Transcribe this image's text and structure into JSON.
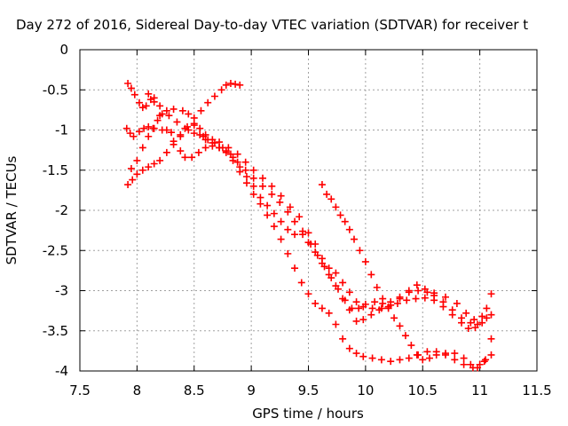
{
  "chart_data": {
    "type": "scatter",
    "title": "Day 272 of 2016, Sidereal Day-to-day VTEC variation (SDTVAR) for receiver t",
    "xlabel": "GPS time / hours",
    "ylabel": "SDTVAR / TECUs",
    "xlim": [
      7.5,
      11.5
    ],
    "ylim": [
      -4,
      0
    ],
    "xticks": [
      "7.5",
      "8",
      "8.5",
      "9",
      "9.5",
      "10",
      "10.5",
      "11",
      "11.5"
    ],
    "yticks": [
      "0",
      "-0.5",
      "-1",
      "-1.5",
      "-2",
      "-2.5",
      "-3",
      "-3.5",
      "-4"
    ],
    "grid": true,
    "marker": "+",
    "marker_color": "#ff0000",
    "series": [
      {
        "points": [
          [
            7.92,
            -0.42
          ],
          [
            7.95,
            -0.48
          ],
          [
            7.98,
            -0.56
          ],
          [
            8.02,
            -0.66
          ],
          [
            8.05,
            -0.72
          ],
          [
            8.08,
            -0.7
          ],
          [
            8.12,
            -0.62
          ],
          [
            8.15,
            -0.6
          ],
          [
            8.2,
            -0.7
          ],
          [
            8.28,
            -0.82
          ],
          [
            8.35,
            -0.9
          ],
          [
            8.42,
            -0.98
          ],
          [
            8.5,
            -1.04
          ],
          [
            8.58,
            -1.08
          ],
          [
            8.62,
            -1.12
          ],
          [
            8.68,
            -1.16
          ],
          [
            8.75,
            -1.22
          ],
          [
            8.82,
            -1.3
          ],
          [
            8.88,
            -1.4
          ],
          [
            8.95,
            -1.5
          ],
          [
            9.02,
            -1.6
          ],
          [
            9.1,
            -1.7
          ],
          [
            9.18,
            -1.8
          ],
          [
            9.25,
            -1.9
          ],
          [
            9.32,
            -2.02
          ],
          [
            9.38,
            -2.14
          ],
          [
            9.45,
            -2.26
          ],
          [
            9.52,
            -2.42
          ],
          [
            9.58,
            -2.56
          ],
          [
            9.64,
            -2.7
          ],
          [
            9.7,
            -2.84
          ],
          [
            9.76,
            -2.98
          ],
          [
            9.82,
            -3.12
          ],
          [
            9.88,
            -3.22
          ],
          [
            9.94,
            -3.22
          ],
          [
            10.0,
            -3.17
          ],
          [
            10.08,
            -3.14
          ],
          [
            10.15,
            -3.16
          ],
          [
            10.22,
            -3.18
          ],
          [
            10.3,
            -3.1
          ],
          [
            10.38,
            -3.0
          ],
          [
            10.45,
            -2.93
          ],
          [
            10.52,
            -2.98
          ],
          [
            10.6,
            -3.03
          ],
          [
            10.7,
            -3.08
          ],
          [
            10.8,
            -3.16
          ],
          [
            10.88,
            -3.28
          ],
          [
            10.95,
            -3.36
          ],
          [
            11.02,
            -3.32
          ],
          [
            11.06,
            -3.22
          ],
          [
            11.1,
            -3.04
          ]
        ]
      },
      {
        "points": [
          [
            7.91,
            -0.98
          ],
          [
            7.94,
            -1.04
          ],
          [
            7.97,
            -1.08
          ],
          [
            8.02,
            -1.02
          ],
          [
            8.06,
            -0.98
          ],
          [
            8.1,
            -0.96
          ],
          [
            8.15,
            -0.98
          ],
          [
            8.22,
            -1.0
          ],
          [
            8.3,
            -1.03
          ],
          [
            8.38,
            -1.06
          ],
          [
            8.45,
            -1.0
          ],
          [
            8.5,
            -0.94
          ],
          [
            8.55,
            -0.98
          ],
          [
            8.6,
            -1.06
          ],
          [
            8.66,
            -1.16
          ],
          [
            8.72,
            -1.22
          ],
          [
            8.78,
            -1.26
          ],
          [
            8.84,
            -1.34
          ],
          [
            8.9,
            -1.46
          ],
          [
            8.96,
            -1.58
          ],
          [
            9.02,
            -1.7
          ],
          [
            9.08,
            -1.84
          ],
          [
            9.14,
            -1.94
          ],
          [
            9.2,
            -2.04
          ],
          [
            9.26,
            -2.14
          ],
          [
            9.32,
            -2.24
          ],
          [
            9.38,
            -2.3
          ],
          [
            9.45,
            -2.3
          ],
          [
            9.5,
            -2.4
          ],
          [
            9.56,
            -2.52
          ],
          [
            9.62,
            -2.66
          ],
          [
            9.68,
            -2.8
          ],
          [
            9.74,
            -2.94
          ],
          [
            9.8,
            -3.1
          ],
          [
            9.86,
            -3.24
          ],
          [
            9.92,
            -3.38
          ],
          [
            9.98,
            -3.36
          ],
          [
            10.05,
            -3.3
          ],
          [
            10.12,
            -3.24
          ],
          [
            10.2,
            -3.2
          ],
          [
            10.28,
            -3.16
          ],
          [
            10.36,
            -3.12
          ],
          [
            10.44,
            -3.1
          ],
          [
            10.52,
            -3.09
          ],
          [
            10.6,
            -3.12
          ],
          [
            10.68,
            -3.2
          ],
          [
            10.76,
            -3.3
          ],
          [
            10.84,
            -3.4
          ],
          [
            10.9,
            -3.47
          ],
          [
            10.96,
            -3.46
          ],
          [
            11.02,
            -3.4
          ],
          [
            11.06,
            -3.34
          ],
          [
            11.1,
            -3.3
          ]
        ]
      },
      {
        "points": [
          [
            7.92,
            -1.68
          ],
          [
            7.96,
            -1.62
          ],
          [
            8.0,
            -1.55
          ],
          [
            8.05,
            -1.5
          ],
          [
            8.1,
            -1.46
          ],
          [
            8.15,
            -1.42
          ],
          [
            8.2,
            -1.38
          ],
          [
            8.26,
            -1.28
          ],
          [
            8.32,
            -1.18
          ],
          [
            8.38,
            -1.08
          ],
          [
            8.44,
            -0.96
          ],
          [
            8.5,
            -0.85
          ],
          [
            8.56,
            -0.76
          ],
          [
            8.62,
            -0.66
          ],
          [
            8.68,
            -0.58
          ],
          [
            8.74,
            -0.5
          ],
          [
            8.78,
            -0.44
          ],
          [
            8.82,
            -0.42
          ],
          [
            8.86,
            -0.43
          ],
          [
            8.9,
            -0.44
          ]
        ]
      },
      {
        "points": [
          [
            7.95,
            -1.48
          ],
          [
            8.0,
            -1.38
          ],
          [
            8.05,
            -1.22
          ],
          [
            8.1,
            -1.08
          ],
          [
            8.14,
            -0.98
          ],
          [
            8.18,
            -0.88
          ],
          [
            8.22,
            -0.8
          ],
          [
            8.26,
            -0.76
          ],
          [
            8.32,
            -0.74
          ],
          [
            8.4,
            -0.76
          ],
          [
            8.45,
            -0.8
          ],
          [
            8.5,
            -0.92
          ],
          [
            8.55,
            -1.06
          ],
          [
            8.6,
            -1.12
          ],
          [
            8.66,
            -1.12
          ],
          [
            8.72,
            -1.15
          ],
          [
            8.8,
            -1.22
          ],
          [
            8.88,
            -1.3
          ],
          [
            8.95,
            -1.4
          ],
          [
            9.02,
            -1.5
          ],
          [
            9.1,
            -1.6
          ],
          [
            9.18,
            -1.7
          ],
          [
            9.26,
            -1.82
          ],
          [
            9.34,
            -1.96
          ],
          [
            9.42,
            -2.08
          ],
          [
            9.5,
            -2.28
          ],
          [
            9.56,
            -2.42
          ],
          [
            9.62,
            -2.6
          ],
          [
            9.68,
            -2.72
          ],
          [
            9.74,
            -2.78
          ],
          [
            9.8,
            -2.9
          ],
          [
            9.86,
            -3.02
          ],
          [
            9.92,
            -3.14
          ],
          [
            9.98,
            -3.2
          ],
          [
            10.06,
            -3.22
          ],
          [
            10.14,
            -3.22
          ],
          [
            10.22,
            -3.14
          ],
          [
            10.3,
            -3.08
          ],
          [
            10.38,
            -3.02
          ],
          [
            10.46,
            -3.0
          ],
          [
            10.54,
            -3.02
          ],
          [
            10.6,
            -3.06
          ],
          [
            10.68,
            -3.14
          ],
          [
            10.76,
            -3.24
          ],
          [
            10.84,
            -3.34
          ],
          [
            10.92,
            -3.4
          ],
          [
            10.98,
            -3.42
          ]
        ]
      },
      {
        "points": [
          [
            8.1,
            -0.55
          ],
          [
            8.15,
            -0.65
          ],
          [
            8.2,
            -0.82
          ],
          [
            8.26,
            -1.0
          ],
          [
            8.32,
            -1.14
          ],
          [
            8.38,
            -1.26
          ],
          [
            8.42,
            -1.34
          ],
          [
            8.48,
            -1.34
          ],
          [
            8.54,
            -1.28
          ],
          [
            8.6,
            -1.22
          ],
          [
            8.66,
            -1.2
          ],
          [
            8.72,
            -1.22
          ],
          [
            8.78,
            -1.28
          ],
          [
            8.84,
            -1.38
          ],
          [
            8.9,
            -1.52
          ],
          [
            8.96,
            -1.66
          ],
          [
            9.02,
            -1.8
          ],
          [
            9.08,
            -1.92
          ],
          [
            9.14,
            -2.06
          ],
          [
            9.2,
            -2.2
          ],
          [
            9.26,
            -2.36
          ],
          [
            9.32,
            -2.54
          ],
          [
            9.38,
            -2.72
          ],
          [
            9.44,
            -2.9
          ],
          [
            9.5,
            -3.04
          ],
          [
            9.56,
            -3.16
          ],
          [
            9.62,
            -3.22
          ],
          [
            9.68,
            -3.28
          ],
          [
            9.74,
            -3.42
          ],
          [
            9.8,
            -3.6
          ],
          [
            9.86,
            -3.72
          ],
          [
            9.92,
            -3.78
          ],
          [
            9.98,
            -3.82
          ],
          [
            10.06,
            -3.84
          ],
          [
            10.14,
            -3.86
          ],
          [
            10.22,
            -3.88
          ],
          [
            10.3,
            -3.86
          ],
          [
            10.38,
            -3.84
          ],
          [
            10.46,
            -3.8
          ],
          [
            10.54,
            -3.76
          ],
          [
            10.62,
            -3.76
          ],
          [
            10.7,
            -3.8
          ],
          [
            10.78,
            -3.86
          ],
          [
            10.86,
            -3.92
          ],
          [
            10.94,
            -3.96
          ],
          [
            11.0,
            -3.92
          ],
          [
            11.05,
            -3.86
          ],
          [
            11.1,
            -3.8
          ]
        ]
      },
      {
        "points": [
          [
            9.62,
            -1.68
          ],
          [
            9.66,
            -1.8
          ],
          [
            9.7,
            -1.86
          ],
          [
            9.74,
            -1.96
          ],
          [
            9.78,
            -2.06
          ],
          [
            9.82,
            -2.14
          ],
          [
            9.86,
            -2.24
          ],
          [
            9.9,
            -2.36
          ],
          [
            9.95,
            -2.5
          ],
          [
            10.0,
            -2.64
          ],
          [
            10.05,
            -2.8
          ],
          [
            10.1,
            -2.96
          ],
          [
            10.15,
            -3.1
          ],
          [
            10.2,
            -3.22
          ],
          [
            10.25,
            -3.34
          ],
          [
            10.3,
            -3.44
          ],
          [
            10.35,
            -3.56
          ],
          [
            10.4,
            -3.68
          ],
          [
            10.45,
            -3.8
          ],
          [
            10.5,
            -3.86
          ],
          [
            10.56,
            -3.84
          ],
          [
            10.62,
            -3.8
          ],
          [
            10.7,
            -3.78
          ],
          [
            10.78,
            -3.78
          ],
          [
            10.86,
            -3.84
          ],
          [
            10.92,
            -3.92
          ],
          [
            10.98,
            -3.96
          ],
          [
            11.04,
            -3.88
          ],
          [
            11.1,
            -3.6
          ]
        ]
      }
    ]
  }
}
